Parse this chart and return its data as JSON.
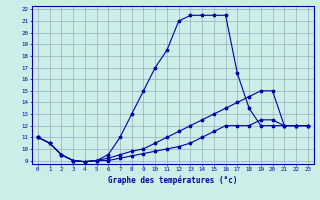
{
  "title": "Graphe des températures (°c)",
  "bg_color": "#cceee8",
  "grid_color": "#99aabb",
  "line_color": "#0000aa",
  "xlim": [
    -0.5,
    23.5
  ],
  "ylim": [
    8.7,
    22.3
  ],
  "xticks": [
    0,
    1,
    2,
    3,
    4,
    5,
    6,
    7,
    8,
    9,
    10,
    11,
    12,
    13,
    14,
    15,
    16,
    17,
    18,
    19,
    20,
    21,
    22,
    23
  ],
  "yticks": [
    9,
    10,
    11,
    12,
    13,
    14,
    15,
    16,
    17,
    18,
    19,
    20,
    21,
    22
  ],
  "curve1_x": [
    0,
    1,
    2,
    3,
    4,
    5,
    6,
    7,
    8,
    9,
    10,
    11,
    12,
    13,
    14,
    15,
    16,
    17,
    18,
    19,
    20,
    21,
    22,
    23
  ],
  "curve1_y": [
    11.0,
    10.5,
    9.5,
    9.0,
    8.9,
    9.0,
    9.5,
    11.0,
    13.0,
    15.0,
    17.0,
    18.5,
    21.0,
    21.5,
    21.5,
    21.5,
    21.5,
    16.5,
    13.5,
    12.0,
    12.0,
    12.0,
    12.0,
    12.0
  ],
  "curve2_x": [
    0,
    1,
    2,
    3,
    4,
    5,
    6,
    7,
    8,
    9,
    10,
    11,
    12,
    13,
    14,
    15,
    16,
    17,
    18,
    19,
    20,
    21,
    22,
    23
  ],
  "curve2_y": [
    11.0,
    10.5,
    9.5,
    9.0,
    8.9,
    9.0,
    9.2,
    9.5,
    9.8,
    10.0,
    10.5,
    11.0,
    11.5,
    12.0,
    12.5,
    13.0,
    13.5,
    14.0,
    14.5,
    15.0,
    15.0,
    12.0,
    12.0,
    12.0
  ],
  "curve3_x": [
    0,
    1,
    2,
    3,
    4,
    5,
    6,
    7,
    8,
    9,
    10,
    11,
    12,
    13,
    14,
    15,
    16,
    17,
    18,
    19,
    20,
    21,
    22,
    23
  ],
  "curve3_y": [
    11.0,
    10.5,
    9.5,
    9.0,
    8.9,
    9.0,
    9.0,
    9.2,
    9.4,
    9.6,
    9.8,
    10.0,
    10.2,
    10.5,
    11.0,
    11.5,
    12.0,
    12.0,
    12.0,
    12.5,
    12.5,
    12.0,
    12.0,
    12.0
  ]
}
